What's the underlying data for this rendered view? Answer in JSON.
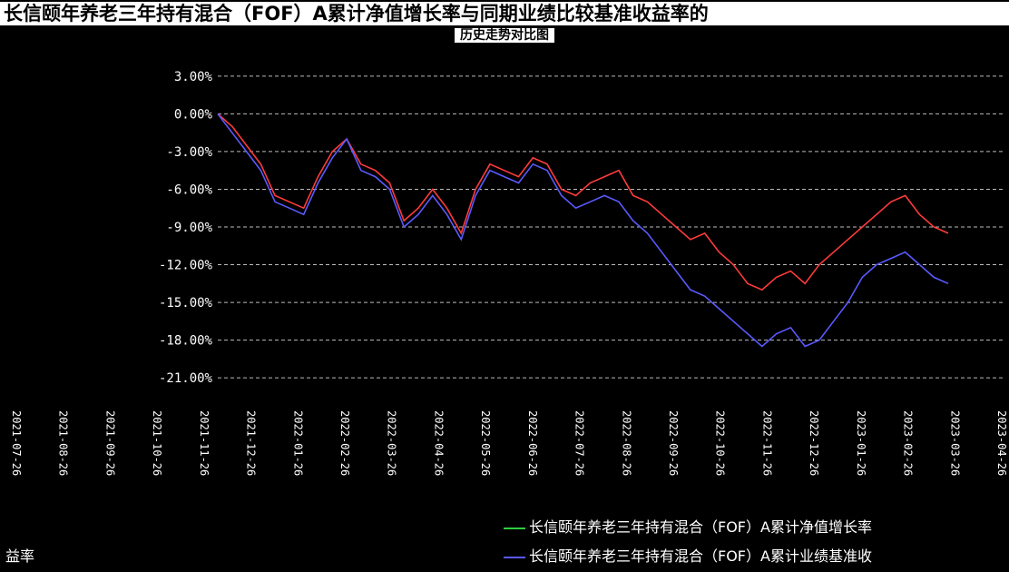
{
  "title": "长信颐年养老三年持有混合（FOF）A累计净值增长率与同期业绩比较基准收益率的",
  "subtitle": "历史走势对比图",
  "chart_data": {
    "type": "line",
    "ylim": [
      -22,
      4
    ],
    "y_ticks": [
      "3.00%",
      "0.00%",
      "-3.00%",
      "-6.00%",
      "-9.00%",
      "-12.00%",
      "-15.00%",
      "-18.00%",
      "-21.00%"
    ],
    "y_tick_values": [
      3,
      0,
      -3,
      -6,
      -9,
      -12,
      -15,
      -18,
      -21
    ],
    "x_ticks": [
      "2021-07-26",
      "2021-08-26",
      "2021-09-26",
      "2021-10-26",
      "2021-11-26",
      "2021-12-26",
      "2022-01-26",
      "2022-02-26",
      "2022-03-26",
      "2022-04-26",
      "2022-05-26",
      "2022-06-26",
      "2022-07-26",
      "2022-08-26",
      "2022-09-26",
      "2022-10-26",
      "2022-11-26",
      "2022-12-26",
      "2023-01-26",
      "2023-02-26",
      "2023-03-26",
      "2023-04-26"
    ],
    "grid": true,
    "series": [
      {
        "name": "长信颐年养老三年持有混合（FOF）A累计净值增长率",
        "color": "#ff3b3b",
        "values": [
          0.0,
          -1.0,
          -2.5,
          -4.0,
          -6.5,
          -7.0,
          -7.5,
          -5.0,
          -3.0,
          -2.0,
          -4.0,
          -4.5,
          -5.5,
          -8.5,
          -7.5,
          -6.0,
          -7.5,
          -9.5,
          -6.0,
          -4.0,
          -4.5,
          -5.0,
          -3.5,
          -4.0,
          -6.0,
          -6.5,
          -5.5,
          -5.0,
          -4.5,
          -6.5,
          -7.0,
          -8.0,
          -9.0,
          -10.0,
          -9.5,
          -11.0,
          -12.0,
          -13.5,
          -14.0,
          -13.0,
          -12.5,
          -13.5,
          -12.0,
          -11.0,
          -10.0,
          -9.0,
          -8.0,
          -7.0,
          -6.5,
          -8.0,
          -9.0,
          -9.5
        ]
      },
      {
        "name": "长信颐年养老三年持有混合（FOF）A累计业绩基准收益率",
        "color": "#5a5aff",
        "values": [
          0.0,
          -1.5,
          -3.0,
          -4.5,
          -7.0,
          -7.5,
          -8.0,
          -5.5,
          -3.5,
          -2.0,
          -4.5,
          -5.0,
          -6.0,
          -9.0,
          -8.0,
          -6.5,
          -8.0,
          -10.0,
          -6.5,
          -4.5,
          -5.0,
          -5.5,
          -4.0,
          -4.5,
          -6.5,
          -7.5,
          -7.0,
          -6.5,
          -7.0,
          -8.5,
          -9.5,
          -11.0,
          -12.5,
          -14.0,
          -14.5,
          -15.5,
          -16.5,
          -17.5,
          -18.5,
          -17.5,
          -17.0,
          -18.5,
          -18.0,
          -16.5,
          -15.0,
          -13.0,
          -12.0,
          -11.5,
          -11.0,
          -12.0,
          -13.0,
          -13.5
        ]
      }
    ]
  },
  "legend": {
    "item1": "长信颐年养老三年持有混合（FOF）A累计净值增长率",
    "item2": "长信颐年养老三年持有混合（FOF）A累计业绩基准收",
    "ylabel_tail": "益率"
  }
}
